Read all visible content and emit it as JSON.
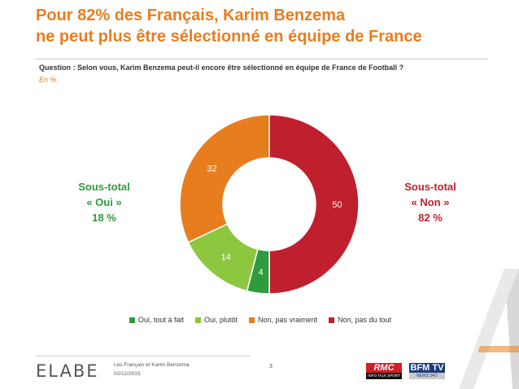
{
  "title_lines": [
    "Pour 82% des Français, Karim Benzema",
    "ne peut plus être sélectionné en équipe de France"
  ],
  "question": "Question : Selon vous, Karim Benzema peut-il encore être sélectionné en équipe de France de Football ?",
  "unit_note": "En %",
  "subtotal_oui": {
    "line1": "Sous-total",
    "line2": "« Oui »",
    "value": "18 %",
    "color": "#2e9b3c"
  },
  "subtotal_non": {
    "line1": "Sous-total",
    "line2": "« Non »",
    "value": "82 %",
    "color": "#c0202e"
  },
  "chart_data": {
    "type": "pie",
    "donut": true,
    "unit": "%",
    "categories": [
      "Oui, tout à fait",
      "Oui, plutôt",
      "Non, pas vraiment",
      "Non, pas du tout"
    ],
    "values": [
      4,
      14,
      32,
      50
    ],
    "colors": [
      "#2e9b3c",
      "#8dc63f",
      "#e87d1e",
      "#c0202e"
    ],
    "legend_position": "bottom"
  },
  "footer": {
    "logo_text": "ELABE",
    "line1": "Les Français et Karim Benzema",
    "line2": "02/12/2015",
    "page": "3",
    "rmc_main": "RMC",
    "rmc_sub": "INFO TALK SPORT",
    "bfm_main": "BFM TV",
    "bfm_sub": "NEWS 24/7"
  }
}
